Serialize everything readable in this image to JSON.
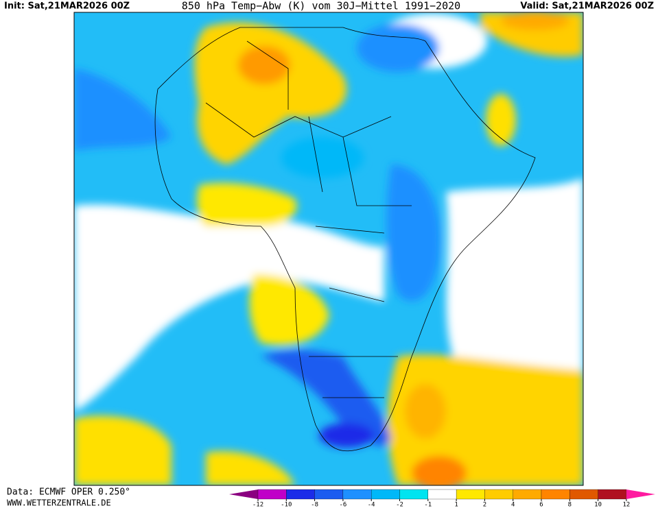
{
  "header": {
    "init": "Init: Sat,21MAR2026 00Z",
    "title": "850 hPa Temp−Abw (K) vom 30J−Mittel 1991−2020",
    "valid": "Valid: Sat,21MAR2026 00Z"
  },
  "footer": {
    "source": "Data: ECMWF OPER 0.250°",
    "site": "WWW.WETTERZENTRALE.DE"
  },
  "legend": {
    "ticks": [
      -12,
      -10,
      -8,
      -6,
      -4,
      -2,
      -1,
      1,
      2,
      4,
      6,
      8,
      10,
      12
    ],
    "colors": [
      "#8a0080",
      "#c000c8",
      "#1c2ce8",
      "#1c5cf0",
      "#1e90ff",
      "#00b8f8",
      "#00e4f0",
      "#ffffff",
      "#ffe800",
      "#ffcc00",
      "#ffaa00",
      "#ff8400",
      "#e05800",
      "#b01020",
      "#ff1aa0"
    ]
  }
}
